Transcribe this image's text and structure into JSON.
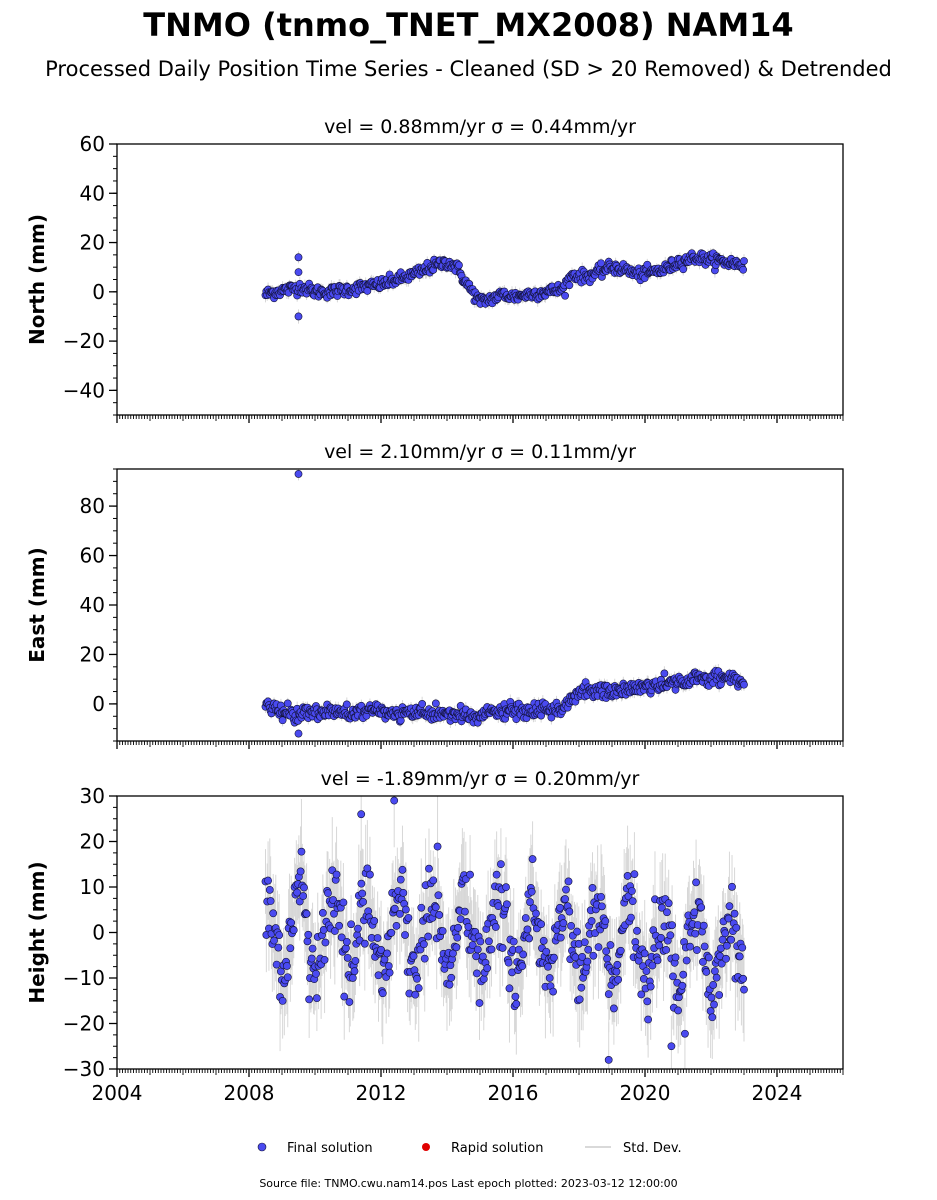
{
  "title": "TNMO (tnmo_TNET_MX2008) NAM14",
  "subtitle": "Processed Daily Position Time Series - Cleaned (SD > 20 Removed) & Detrended",
  "footer": "Source file: TNMO.cwu.nam14.pos  Last epoch plotted: 2023-03-12 12:00:00",
  "legend": {
    "placement": "bottom-center",
    "entries": [
      {
        "label": "Final solution",
        "color": "#4a4af0",
        "marker": "circle"
      },
      {
        "label": "Rapid solution",
        "color": "#e00000",
        "marker": "circle"
      },
      {
        "label": "Std. Dev.",
        "color": "#d9d9d9",
        "marker": "line"
      }
    ]
  },
  "chart_data": [
    {
      "type": "scatter",
      "title": "vel = 0.88mm/yr   σ = 0.44mm/yr",
      "ylabel": "North (mm)",
      "xlim": [
        2004,
        2026
      ],
      "ylim": [
        -50,
        60
      ],
      "yticks": [
        -40,
        -20,
        0,
        20,
        40,
        60
      ],
      "xticks": [
        2004,
        2008,
        2012,
        2016,
        2020,
        2024
      ],
      "series": [
        {
          "values": [
            [
              2008.5,
              -1
            ],
            [
              2008.8,
              0
            ],
            [
              2009.2,
              1
            ],
            [
              2009.6,
              2
            ],
            [
              2010.0,
              0
            ],
            [
              2010.5,
              0
            ],
            [
              2011.0,
              1
            ],
            [
              2011.5,
              2
            ],
            [
              2012.0,
              3
            ],
            [
              2012.5,
              5
            ],
            [
              2013.0,
              7
            ],
            [
              2013.5,
              10
            ],
            [
              2014.0,
              12
            ],
            [
              2014.3,
              10
            ],
            [
              2014.6,
              3
            ],
            [
              2015.0,
              -4
            ],
            [
              2015.3,
              -3
            ],
            [
              2015.7,
              -1
            ],
            [
              2016.0,
              -2
            ],
            [
              2016.5,
              -1
            ],
            [
              2017.0,
              0
            ],
            [
              2017.5,
              1
            ],
            [
              2017.8,
              7
            ],
            [
              2018.2,
              6
            ],
            [
              2018.6,
              8
            ],
            [
              2019.0,
              10
            ],
            [
              2019.4,
              9
            ],
            [
              2019.8,
              7
            ],
            [
              2020.2,
              8
            ],
            [
              2020.6,
              9
            ],
            [
              2021.0,
              12
            ],
            [
              2021.5,
              14
            ],
            [
              2022.0,
              13
            ],
            [
              2022.5,
              12
            ],
            [
              2023.0,
              11
            ]
          ],
          "outliers": [
            [
              2009.5,
              14
            ],
            [
              2009.5,
              -10
            ],
            [
              2009.5,
              8
            ]
          ],
          "band_halfwidth": 2.0
        }
      ]
    },
    {
      "type": "scatter",
      "title": "vel = 2.10mm/yr   σ = 0.11mm/yr",
      "ylabel": "East (mm)",
      "xlim": [
        2004,
        2026
      ],
      "ylim": [
        -15,
        95
      ],
      "yticks": [
        0,
        20,
        40,
        60,
        80
      ],
      "xticks": [
        2004,
        2008,
        2012,
        2016,
        2020,
        2024
      ],
      "series": [
        {
          "values": [
            [
              2008.5,
              -1
            ],
            [
              2009.0,
              -3
            ],
            [
              2009.5,
              -4
            ],
            [
              2010.0,
              -3
            ],
            [
              2010.5,
              -3
            ],
            [
              2011.0,
              -4
            ],
            [
              2011.5,
              -3
            ],
            [
              2012.0,
              -3
            ],
            [
              2012.5,
              -4
            ],
            [
              2013.0,
              -4
            ],
            [
              2013.5,
              -4
            ],
            [
              2014.0,
              -4
            ],
            [
              2014.5,
              -5
            ],
            [
              2015.0,
              -5
            ],
            [
              2015.5,
              -3
            ],
            [
              2016.0,
              -3
            ],
            [
              2016.5,
              -3
            ],
            [
              2017.0,
              -3
            ],
            [
              2017.5,
              -2
            ],
            [
              2017.8,
              3
            ],
            [
              2018.0,
              5
            ],
            [
              2018.5,
              5
            ],
            [
              2019.0,
              5
            ],
            [
              2019.5,
              6
            ],
            [
              2020.0,
              7
            ],
            [
              2020.5,
              8
            ],
            [
              2021.0,
              9
            ],
            [
              2021.5,
              10
            ],
            [
              2022.0,
              10
            ],
            [
              2022.5,
              11
            ],
            [
              2023.0,
              9
            ]
          ],
          "outliers": [
            [
              2009.5,
              93
            ],
            [
              2009.5,
              -12
            ]
          ],
          "band_halfwidth": 2.5
        }
      ]
    },
    {
      "type": "scatter",
      "title": "vel = -1.89mm/yr   σ = 0.20mm/yr",
      "ylabel": "Height (mm)",
      "xlabel": "",
      "xlim": [
        2004,
        2026
      ],
      "ylim": [
        -30,
        30
      ],
      "yticks": [
        -30,
        -20,
        -10,
        0,
        10,
        20,
        30
      ],
      "xticks": [
        2004,
        2008,
        2012,
        2016,
        2020,
        2024
      ],
      "series": [
        {
          "values": [
            [
              2008.5,
              0
            ],
            [
              2009.0,
              0
            ],
            [
              2010.0,
              0
            ],
            [
              2011.0,
              0
            ],
            [
              2012.0,
              0
            ],
            [
              2013.0,
              0
            ],
            [
              2014.0,
              0
            ],
            [
              2015.0,
              -1
            ],
            [
              2016.0,
              -1
            ],
            [
              2017.0,
              -2
            ],
            [
              2018.0,
              -2
            ],
            [
              2019.0,
              -3
            ],
            [
              2020.0,
              -3
            ],
            [
              2021.0,
              -4
            ],
            [
              2022.0,
              -4
            ],
            [
              2023.0,
              -4
            ]
          ],
          "seasonal_amplitude": 8,
          "outliers": [
            [
              2012.4,
              29
            ],
            [
              2018.9,
              -28
            ],
            [
              2011.4,
              26
            ],
            [
              2020.8,
              -25
            ]
          ],
          "band_halfwidth": 7
        }
      ]
    }
  ]
}
